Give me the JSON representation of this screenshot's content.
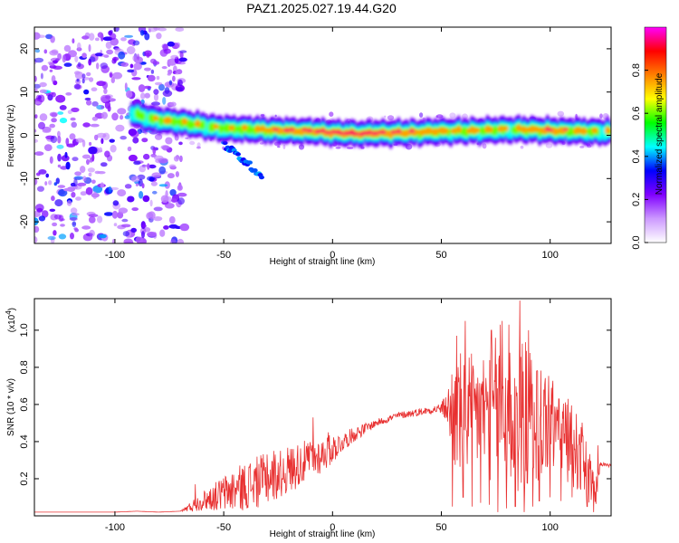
{
  "title": "PAZ1.2025.027.19.44.G20",
  "chart_data": [
    {
      "type": "heatmap",
      "xlabel": "Height of straight line (km)",
      "ylabel": "Frequency (Hz)",
      "xlim": [
        -137,
        128
      ],
      "ylim": [
        -25,
        25
      ],
      "xticks": [
        -100,
        -50,
        0,
        50,
        100
      ],
      "yticks": [
        20,
        10,
        0,
        -10,
        -20
      ],
      "colorbar": {
        "label": "Normalized spectral amplitude",
        "range": [
          0.0,
          1.0
        ],
        "ticks": [
          0.0,
          0.2,
          0.4,
          0.6,
          0.8
        ],
        "colormap": [
          "#ffffff",
          "#cc99ff",
          "#8000ff",
          "#0000ff",
          "#00ffff",
          "#00ff00",
          "#ffff00",
          "#ff8000",
          "#ff0000",
          "#ff00ff"
        ]
      },
      "ridge": {
        "heights_km": [
          -92,
          -85,
          -80,
          -75,
          -70,
          -65,
          -60,
          -55,
          -50,
          -45,
          -40,
          -35,
          -30,
          -25,
          -20,
          -15,
          -10,
          -5,
          0,
          5,
          10,
          15,
          20,
          25,
          30,
          35,
          40,
          45,
          50,
          55,
          60,
          65,
          70,
          75,
          80,
          85,
          90,
          95,
          100,
          105,
          110,
          115,
          120,
          125
        ],
        "frequency_hz": [
          5,
          4,
          3.5,
          3.2,
          3,
          2.6,
          2.2,
          1.8,
          1.5,
          1.5,
          1.4,
          1.3,
          1.2,
          1.1,
          1,
          1,
          0.9,
          0.8,
          0.6,
          0.5,
          0.4,
          0.4,
          0.5,
          0.5,
          0.6,
          0.6,
          0.7,
          0.8,
          0.9,
          0.9,
          1,
          1,
          1.1,
          1.2,
          1.3,
          1.3,
          1.3,
          1.2,
          1.1,
          1,
          1,
          0.9,
          0.8,
          0.8
        ],
        "amplitude": [
          0.45,
          0.55,
          0.6,
          0.65,
          0.62,
          0.6,
          0.55,
          0.55,
          0.55,
          0.6,
          0.6,
          0.65,
          0.7,
          0.75,
          0.8,
          0.75,
          0.8,
          0.85,
          0.9,
          0.95,
          0.95,
          0.95,
          0.9,
          0.85,
          0.8,
          0.75,
          0.7,
          0.7,
          0.7,
          0.65,
          0.65,
          0.7,
          0.6,
          0.6,
          0.55,
          0.6,
          0.7,
          0.75,
          0.8,
          0.75,
          0.7,
          0.65,
          0.6,
          0.55
        ]
      }
    },
    {
      "type": "line",
      "xlabel": "Height of straight line (km)",
      "ylabel": "SNR (10 * v/v)",
      "scale_note": "(x10",
      "scale_exponent": "4",
      "xlim": [
        -137,
        128
      ],
      "ylim": [
        0,
        1.17
      ],
      "xticks": [
        -100,
        -50,
        0,
        50,
        100
      ],
      "yticks": [
        0.2,
        0.4,
        0.6,
        0.8,
        1.0
      ],
      "color": "#e83030",
      "series": [
        {
          "x": [
            -137,
            -120,
            -100,
            -90,
            -80,
            -70,
            -65,
            -60,
            -55,
            -50,
            -45,
            -40,
            -35,
            -30,
            -25,
            -20,
            -15,
            -10,
            -5,
            0,
            5,
            10,
            15,
            20,
            25,
            30,
            35,
            40,
            45,
            50,
            53,
            55,
            58,
            60,
            65,
            70,
            75,
            80,
            85,
            90,
            95,
            100,
            105,
            110,
            115,
            118,
            121,
            123,
            128
          ],
          "values": [
            0.02,
            0.02,
            0.02,
            0.025,
            0.02,
            0.025,
            0.05,
            0.08,
            0.1,
            0.12,
            0.14,
            0.16,
            0.18,
            0.2,
            0.22,
            0.25,
            0.28,
            0.3,
            0.33,
            0.36,
            0.4,
            0.44,
            0.47,
            0.5,
            0.52,
            0.54,
            0.55,
            0.56,
            0.57,
            0.58,
            0.58,
            0.55,
            0.55,
            0.54,
            0.55,
            0.56,
            0.57,
            0.55,
            0.54,
            0.53,
            0.52,
            0.5,
            0.45,
            0.38,
            0.3,
            0.2,
            0.1,
            0.28,
            0.27
          ],
          "noise": [
            0,
            0,
            0,
            0,
            0,
            0,
            0.03,
            0.05,
            0.07,
            0.1,
            0.12,
            0.13,
            0.14,
            0.14,
            0.13,
            0.13,
            0.12,
            0.11,
            0.1,
            0.08,
            0.05,
            0.04,
            0.03,
            0.02,
            0.02,
            0.02,
            0.02,
            0.02,
            0.02,
            0.03,
            0.1,
            0.3,
            0.35,
            0.35,
            0.32,
            0.35,
            0.4,
            0.42,
            0.45,
            0.4,
            0.35,
            0.3,
            0.25,
            0.22,
            0.2,
            0.15,
            0.1,
            0.01,
            0.01
          ],
          "peaks": [
            [
              -63,
              0.17
            ],
            [
              -55,
              0.15
            ],
            [
              -38,
              0.27
            ],
            [
              -30,
              0.33
            ],
            [
              -27,
              0.35
            ],
            [
              -18,
              0.36
            ],
            [
              -10,
              0.36
            ],
            [
              -5,
              0.39
            ],
            [
              -2,
              0.45
            ],
            [
              -9,
              0.53
            ],
            [
              57,
              0.97
            ],
            [
              61,
              1.05
            ],
            [
              73,
              1.0
            ],
            [
              77,
              1.03
            ],
            [
              78,
              1.05
            ],
            [
              81,
              1.03
            ],
            [
              84,
              1.09
            ],
            [
              86,
              1.16
            ],
            [
              90,
              1.0
            ],
            [
              100,
              0.73
            ],
            [
              104,
              0.63
            ],
            [
              115,
              0.43
            ],
            [
              120,
              0.32
            ],
            [
              122,
              0.38
            ]
          ],
          "troughs": [
            [
              55,
              0.05
            ],
            [
              60,
              0.1
            ],
            [
              64,
              0.05
            ],
            [
              68,
              0.07
            ],
            [
              72,
              0.06
            ],
            [
              76,
              0.02
            ],
            [
              80,
              0.04
            ],
            [
              84,
              0.05
            ],
            [
              88,
              0.02
            ],
            [
              92,
              0.05
            ],
            [
              95,
              0.08
            ],
            [
              100,
              0.1
            ],
            [
              105,
              0.08
            ],
            [
              110,
              0.1
            ],
            [
              117,
              0.05
            ],
            [
              120,
              0.02
            ]
          ]
        }
      ]
    }
  ]
}
